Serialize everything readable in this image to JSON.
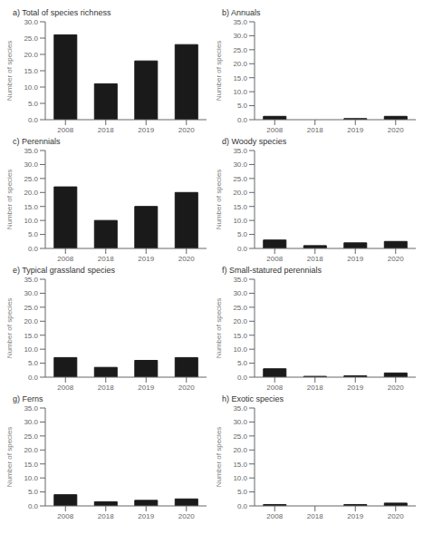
{
  "chart_data": [
    {
      "type": "bar",
      "title": "a) Total of species richness",
      "ylabel": "Number of species",
      "categories": [
        "2008",
        "2018",
        "2019",
        "2020"
      ],
      "values": [
        26,
        11,
        18,
        23
      ],
      "color": "#1a1a1a",
      "ylim": [
        0,
        30
      ],
      "yticks": [
        {
          "value": 0,
          "label": "0.0"
        },
        {
          "value": 5,
          "label": "5.0"
        },
        {
          "value": 10,
          "label": "10.0"
        },
        {
          "value": 15,
          "label": "15.0"
        },
        {
          "value": 20,
          "label": "20.0"
        },
        {
          "value": 25,
          "label": "25.0"
        },
        {
          "value": 30,
          "label": "30.0"
        }
      ],
      "grid": false
    },
    {
      "type": "bar",
      "title": "b) Annuals",
      "ylabel": "Number of species",
      "categories": [
        "2008",
        "2018",
        "2019",
        "2020"
      ],
      "values": [
        1.2,
        0.0,
        0.4,
        1.2
      ],
      "color": "#1a1a1a",
      "ylim": [
        0,
        35
      ],
      "yticks": [
        {
          "value": 0,
          "label": "0.0"
        },
        {
          "value": 5,
          "label": "5.0"
        },
        {
          "value": 10,
          "label": "10.0"
        },
        {
          "value": 15,
          "label": "15.0"
        },
        {
          "value": 20,
          "label": "20.0"
        },
        {
          "value": 25,
          "label": "25.0"
        },
        {
          "value": 30,
          "label": "30.0"
        },
        {
          "value": 35,
          "label": "35.0"
        }
      ],
      "grid": false
    },
    {
      "type": "bar",
      "title": "c) Perennials",
      "ylabel": "Number of species",
      "categories": [
        "2008",
        "2018",
        "2019",
        "2020"
      ],
      "values": [
        22,
        10,
        15,
        20
      ],
      "color": "#1a1a1a",
      "ylim": [
        0,
        35
      ],
      "yticks": [
        {
          "value": 0,
          "label": "0.0"
        },
        {
          "value": 5,
          "label": "5.0"
        },
        {
          "value": 10,
          "label": "10.0"
        },
        {
          "value": 15,
          "label": "15.0"
        },
        {
          "value": 20,
          "label": "20.0"
        },
        {
          "value": 25,
          "label": "25.0"
        },
        {
          "value": 30,
          "label": "30.0"
        },
        {
          "value": 35,
          "label": "35.0"
        }
      ],
      "grid": false
    },
    {
      "type": "bar",
      "title": "d) Woody species",
      "ylabel": "Number of species",
      "categories": [
        "2008",
        "2018",
        "2019",
        "2020"
      ],
      "values": [
        3,
        1,
        2,
        2.5
      ],
      "color": "#1a1a1a",
      "ylim": [
        0,
        35
      ],
      "yticks": [
        {
          "value": 0,
          "label": "0.0"
        },
        {
          "value": 5,
          "label": "5.0"
        },
        {
          "value": 10,
          "label": "10.0"
        },
        {
          "value": 15,
          "label": "15.0"
        },
        {
          "value": 20,
          "label": "20.0"
        },
        {
          "value": 25,
          "label": "25.0"
        },
        {
          "value": 30,
          "label": "30.0"
        },
        {
          "value": 35,
          "label": "35.0"
        }
      ],
      "grid": false
    },
    {
      "type": "bar",
      "title": "e) Typical grassland species",
      "ylabel": "Number of species",
      "categories": [
        "2008",
        "2018",
        "2019",
        "2020"
      ],
      "values": [
        7,
        3.5,
        6,
        7
      ],
      "color": "#1a1a1a",
      "ylim": [
        0,
        35
      ],
      "yticks": [
        {
          "value": 0,
          "label": "0.0"
        },
        {
          "value": 5,
          "label": "5.0"
        },
        {
          "value": 10,
          "label": "10.0"
        },
        {
          "value": 15,
          "label": "15.0"
        },
        {
          "value": 20,
          "label": "20.0"
        },
        {
          "value": 25,
          "label": "25.0"
        },
        {
          "value": 30,
          "label": "30.0"
        },
        {
          "value": 35,
          "label": "35.0"
        }
      ],
      "grid": false
    },
    {
      "type": "bar",
      "title": "f) Small-statured perennials",
      "ylabel": "Number of species",
      "categories": [
        "2008",
        "2018",
        "2019",
        "2020"
      ],
      "values": [
        3,
        0.3,
        0.5,
        1.5
      ],
      "color": "#1a1a1a",
      "ylim": [
        0,
        35
      ],
      "yticks": [
        {
          "value": 0,
          "label": "0.0"
        },
        {
          "value": 5,
          "label": "5.0"
        },
        {
          "value": 10,
          "label": "10.0"
        },
        {
          "value": 15,
          "label": "15.0"
        },
        {
          "value": 20,
          "label": "20.0"
        },
        {
          "value": 25,
          "label": "25.0"
        },
        {
          "value": 30,
          "label": "30.0"
        },
        {
          "value": 35,
          "label": "35.0"
        }
      ],
      "grid": false
    },
    {
      "type": "bar",
      "title": "g) Ferns",
      "ylabel": "Number of species",
      "categories": [
        "2008",
        "2018",
        "2019",
        "2020"
      ],
      "values": [
        4,
        1.5,
        2,
        2.5
      ],
      "color": "#1a1a1a",
      "ylim": [
        0,
        35
      ],
      "yticks": [
        {
          "value": 0,
          "label": "0.0"
        },
        {
          "value": 5,
          "label": "5.0"
        },
        {
          "value": 10,
          "label": "10.0"
        },
        {
          "value": 15,
          "label": "15.0"
        },
        {
          "value": 20,
          "label": "20.0"
        },
        {
          "value": 25,
          "label": "25.0"
        },
        {
          "value": 30,
          "label": "30.0"
        },
        {
          "value": 35,
          "label": "35.0"
        }
      ],
      "grid": false
    },
    {
      "type": "bar",
      "title": "h) Exotic species",
      "ylabel": "Number of species",
      "categories": [
        "2008",
        "2018",
        "2019",
        "2020"
      ],
      "values": [
        0.5,
        0.0,
        0.5,
        1.0
      ],
      "color": "#1a1a1a",
      "ylim": [
        0,
        35
      ],
      "yticks": [
        {
          "value": 0,
          "label": "0.0"
        },
        {
          "value": 5,
          "label": "5.0"
        },
        {
          "value": 10,
          "label": "10.0"
        },
        {
          "value": 15,
          "label": "15.0"
        },
        {
          "value": 20,
          "label": "20.0"
        },
        {
          "value": 25,
          "label": "25.0"
        },
        {
          "value": 30,
          "label": "30.0"
        },
        {
          "value": 35,
          "label": "35.0"
        }
      ],
      "grid": false
    }
  ]
}
